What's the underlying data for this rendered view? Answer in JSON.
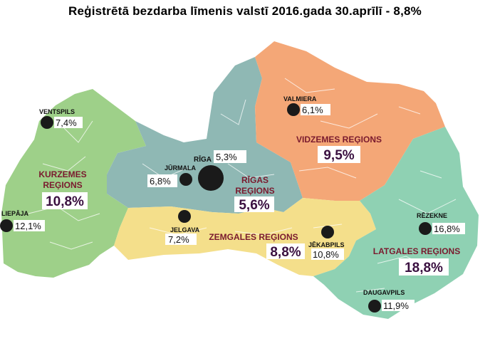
{
  "title": "Reģistrētā bezdarba līmenis valstī 2016.gada 30.aprīlī - 8,8%",
  "colors": {
    "kurzeme": "#9ed089",
    "riga": "#8fb8b4",
    "vidzeme": "#f4a777",
    "zemgale": "#f4df8b",
    "latgale": "#8fd1b3",
    "city_dot": "#1a1a1a"
  },
  "regions": {
    "kurzeme": {
      "name_line1": "KURZEMES",
      "name_line2": "REĢIONS",
      "rate": "10,8%"
    },
    "riga": {
      "name_line1": "RĪGAS",
      "name_line2": "REĢIONS",
      "rate": "5,6%"
    },
    "vidzeme": {
      "name": "VIDZEMES REĢIONS",
      "rate": "9,5%"
    },
    "zemgale": {
      "name": "ZEMGALES REĢIONS",
      "rate": "8,8%"
    },
    "latgale": {
      "name": "LATGALES REĢIONS",
      "rate": "18,8%"
    }
  },
  "cities": {
    "ventspils": {
      "name": "VENTSPILS",
      "rate": "7,4%"
    },
    "liepaja": {
      "name": "LIEPĀJA",
      "rate": "12,1%"
    },
    "jurmala": {
      "name": "JŪRMALA",
      "rate": "6,8%"
    },
    "riga": {
      "name": "RĪGA",
      "rate": "5,3%"
    },
    "jelgava": {
      "name": "JELGAVA",
      "rate": "7,2%"
    },
    "valmiera": {
      "name": "VALMIERA",
      "rate": "6,1%"
    },
    "jekabpils": {
      "name": "JĒKABPILS",
      "rate": "10,8%"
    },
    "rezekne": {
      "name": "RĒZEKNE",
      "rate": "16,8%"
    },
    "daugavpils": {
      "name": "DAUGAVPILS",
      "rate": "11,9%"
    }
  }
}
